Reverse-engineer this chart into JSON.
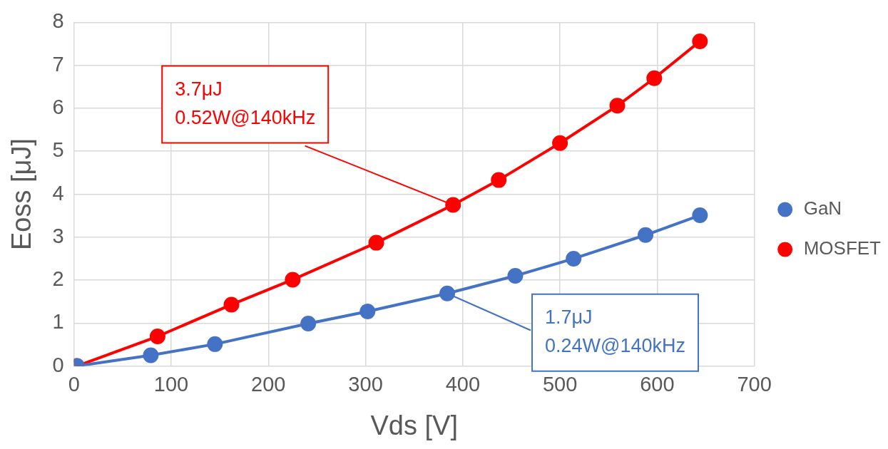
{
  "chart_data": {
    "type": "line",
    "xlabel": "Vds [V]",
    "ylabel": "Eoss [μJ]",
    "xlim": [
      0,
      700
    ],
    "xticks": [
      0,
      100,
      200,
      300,
      400,
      500,
      600,
      700
    ],
    "ylim": [
      0,
      8
    ],
    "yticks": [
      0,
      1,
      2,
      3,
      4,
      5,
      6,
      7,
      8
    ],
    "grid": true,
    "legend": "right",
    "marker": "circle",
    "line_style": "solid",
    "series": [
      {
        "name": "GaN",
        "color": "#4472c4",
        "x": [
          3,
          79,
          145,
          241,
          302,
          384,
          454,
          514,
          588,
          644
        ],
        "values": [
          0,
          0.25,
          0.51,
          0.99,
          1.27,
          1.69,
          2.1,
          2.5,
          3.05,
          3.51
        ]
      },
      {
        "name": "MOSFET",
        "color": "#ff0000",
        "x": [
          3,
          86,
          162,
          225,
          311,
          390,
          437,
          500,
          559,
          597,
          644
        ],
        "values": [
          0,
          0.69,
          1.43,
          2.01,
          2.87,
          3.75,
          4.33,
          5.19,
          6.06,
          6.7,
          7.56
        ]
      }
    ],
    "annotations": [
      {
        "text": "3.7μJ\n0.52W@140kHz",
        "x": 390,
        "y": 3.75
      },
      {
        "text": "1.7μJ\n0.24W@140kHz",
        "x": 384,
        "y": 1.69
      }
    ]
  }
}
